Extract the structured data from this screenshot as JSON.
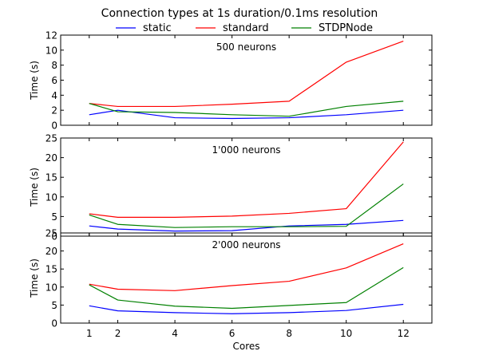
{
  "chart_data": {
    "type": "line",
    "title": "Connection types at 1s duration/0.1ms resolution",
    "xlabel": "Cores",
    "x_ticks": [
      1,
      2,
      4,
      6,
      8,
      10,
      12
    ],
    "xlim": [
      0,
      13
    ],
    "legend": {
      "placement": "top-center",
      "entries": [
        {
          "name": "static",
          "color": "#0000ff"
        },
        {
          "name": "standard",
          "color": "#ff0000"
        },
        {
          "name": "STDPNode",
          "color": "#008000"
        }
      ]
    },
    "panels": [
      {
        "title": "500 neurons",
        "ylabel": "Time (s)",
        "ylim": [
          0,
          12
        ],
        "yticks": [
          0,
          2,
          4,
          6,
          8,
          10,
          12
        ],
        "x": [
          1,
          2,
          4,
          6,
          8,
          10,
          12
        ],
        "series": [
          {
            "name": "static",
            "color": "#0000ff",
            "values": [
              1.4,
              2.0,
              1.0,
              0.9,
              1.0,
              1.4,
              2.0
            ]
          },
          {
            "name": "standard",
            "color": "#ff0000",
            "values": [
              2.9,
              2.5,
              2.5,
              2.8,
              3.2,
              8.4,
              11.2
            ]
          },
          {
            "name": "STDPNode",
            "color": "#008000",
            "values": [
              2.9,
              1.8,
              1.7,
              1.4,
              1.2,
              2.5,
              3.2
            ]
          }
        ]
      },
      {
        "title": "1'000 neurons",
        "ylabel": "Time (s)",
        "ylim": [
          0,
          25
        ],
        "yticks": [
          0,
          5,
          10,
          15,
          20,
          25
        ],
        "x": [
          1,
          2,
          4,
          6,
          8,
          10,
          12
        ],
        "series": [
          {
            "name": "static",
            "color": "#0000ff",
            "values": [
              2.6,
              1.8,
              1.3,
              1.4,
              2.6,
              3.0,
              4.0
            ]
          },
          {
            "name": "standard",
            "color": "#ff0000",
            "values": [
              5.7,
              4.8,
              4.8,
              5.1,
              5.8,
              7.0,
              24.0
            ]
          },
          {
            "name": "STDPNode",
            "color": "#008000",
            "values": [
              5.4,
              3.0,
              2.2,
              2.4,
              2.4,
              2.5,
              13.3
            ]
          }
        ]
      },
      {
        "title": "2'000 neurons",
        "ylabel": "Time (s)",
        "ylim": [
          0,
          25
        ],
        "yticks": [
          0,
          5,
          10,
          15,
          20,
          25
        ],
        "x": [
          1,
          2,
          4,
          6,
          8,
          10,
          12
        ],
        "series": [
          {
            "name": "static",
            "color": "#0000ff",
            "values": [
              4.8,
              3.4,
              2.9,
              2.6,
              2.9,
              3.5,
              5.2
            ]
          },
          {
            "name": "standard",
            "color": "#ff0000",
            "values": [
              10.8,
              9.4,
              9.0,
              10.4,
              11.6,
              15.3,
              22.0
            ]
          },
          {
            "name": "STDPNode",
            "color": "#008000",
            "values": [
              10.6,
              6.4,
              4.7,
              4.1,
              4.9,
              5.7,
              15.4
            ]
          }
        ]
      }
    ]
  }
}
